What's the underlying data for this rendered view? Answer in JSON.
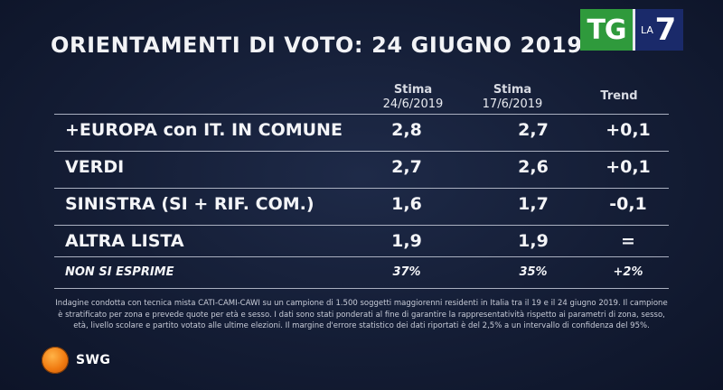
{
  "chart_data": {
    "type": "table",
    "title": "ORIENTAMENTI DI VOTO: 24 GIUGNO 2019",
    "columns": [
      {
        "label": "Stima",
        "date": "24/6/2019"
      },
      {
        "label": "Stima",
        "date": "17/6/2019"
      },
      {
        "label": "Trend",
        "date": ""
      }
    ],
    "rows": [
      {
        "party": "+EUROPA con IT. IN COMUNE",
        "v1": "2,8",
        "v2": "2,7",
        "trend": "+0,1"
      },
      {
        "party": "VERDI",
        "v1": "2,7",
        "v2": "2,6",
        "trend": "+0,1"
      },
      {
        "party": "SINISTRA (SI + RIF. COM.)",
        "v1": "1,6",
        "v2": "1,7",
        "trend": "-0,1"
      },
      {
        "party": "ALTRA LISTA",
        "v1": "1,9",
        "v2": "1,9",
        "trend": "="
      },
      {
        "party": "NON SI ESPRIME",
        "v1": "37%",
        "v2": "35%",
        "trend": "+2%"
      }
    ]
  },
  "logos": {
    "tg": "TG",
    "la": "LA",
    "seven": "7",
    "swg": "SWG"
  },
  "note": "Indagine condotta con tecnica mista CATI-CAMI-CAWI su un campione di 1.500 soggetti maggiorenni residenti in Italia tra il 19 e il 24 giugno 2019. Il campione è stratificato per zona e prevede quote per età e sesso. I dati sono stati ponderati al fine di garantire la rappresentatività rispetto ai parametri di zona, sesso, età, livello scolare e partito votato alle ultime elezioni. Il margine d'errore statistico dei dati riportati è del 2,5% a un intervallo di confidenza del 95%.",
  "colors": {
    "background": "#141d35",
    "tg_green": "#2f9a3c",
    "la7_blue": "#1a2a6a",
    "swg_orange": "#f07a10"
  }
}
